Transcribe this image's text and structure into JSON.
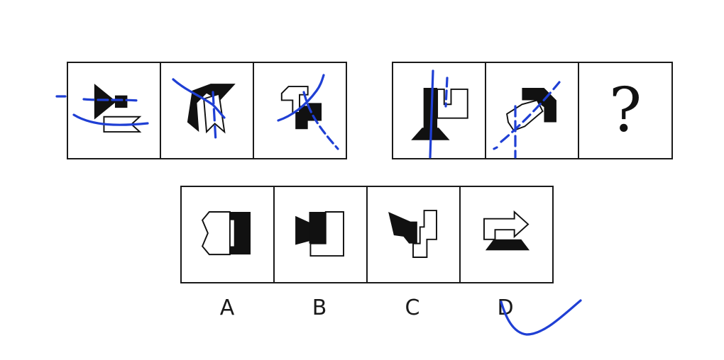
{
  "puzzle": {
    "question_mark": "?",
    "options": [
      {
        "label": "A"
      },
      {
        "label": "B"
      },
      {
        "label": "C"
      },
      {
        "label": "D"
      }
    ],
    "marked_answer": "D"
  },
  "colors": {
    "ink": "#111111",
    "border": "#1a1a1a",
    "annotation": "#1f3fd4"
  },
  "icons": [
    "question-mark-icon",
    "checkmark-annotation-icon"
  ]
}
